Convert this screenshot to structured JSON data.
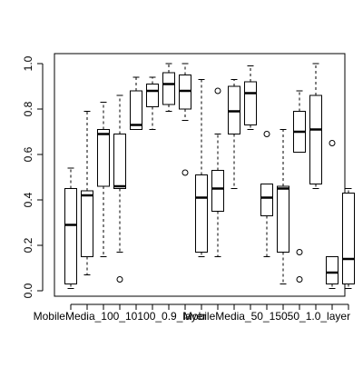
{
  "chart_data": {
    "type": "boxplot",
    "title": "",
    "xlabel": "",
    "ylabel": "",
    "ylim": [
      0.0,
      1.0
    ],
    "y_ticks": [
      0.0,
      0.2,
      0.4,
      0.6,
      0.8,
      1.0
    ],
    "y_tick_labels": [
      "0.0",
      "0.2",
      "0.4",
      "0.6",
      "0.8",
      "1.0"
    ],
    "x_tick_labels": [
      "MobileMedia_100_10100_0.9_layer",
      "MobileMedia_50_15050_1.0_layer"
    ],
    "x_tick_label_positions": [
      3,
      12
    ],
    "boxes": [
      {
        "whisker_low": 0.01,
        "q1": 0.03,
        "median": 0.29,
        "q3": 0.45,
        "whisker_high": 0.54,
        "outliers": []
      },
      {
        "whisker_low": 0.07,
        "q1": 0.15,
        "median": 0.42,
        "q3": 0.44,
        "whisker_high": 0.79,
        "outliers": []
      },
      {
        "whisker_low": 0.15,
        "q1": 0.46,
        "median": 0.69,
        "q3": 0.71,
        "whisker_high": 0.83,
        "outliers": []
      },
      {
        "whisker_low": 0.17,
        "q1": 0.45,
        "median": 0.46,
        "q3": 0.69,
        "whisker_high": 0.86,
        "outliers": [
          0.05
        ]
      },
      {
        "whisker_low": 0.71,
        "q1": 0.71,
        "median": 0.73,
        "q3": 0.88,
        "whisker_high": 0.94,
        "outliers": []
      },
      {
        "whisker_low": 0.71,
        "q1": 0.81,
        "median": 0.88,
        "q3": 0.91,
        "whisker_high": 0.94,
        "outliers": []
      },
      {
        "whisker_low": 0.79,
        "q1": 0.82,
        "median": 0.91,
        "q3": 0.96,
        "whisker_high": 1.0,
        "outliers": []
      },
      {
        "whisker_low": 0.75,
        "q1": 0.8,
        "median": 0.88,
        "q3": 0.95,
        "whisker_high": 1.0,
        "outliers": [
          0.52
        ]
      },
      {
        "whisker_low": 0.15,
        "q1": 0.17,
        "median": 0.41,
        "q3": 0.51,
        "whisker_high": 0.93,
        "outliers": []
      },
      {
        "whisker_low": 0.15,
        "q1": 0.35,
        "median": 0.45,
        "q3": 0.53,
        "whisker_high": 0.69,
        "outliers": [
          0.88
        ]
      },
      {
        "whisker_low": 0.45,
        "q1": 0.69,
        "median": 0.79,
        "q3": 0.9,
        "whisker_high": 0.93,
        "outliers": []
      },
      {
        "whisker_low": 0.71,
        "q1": 0.73,
        "median": 0.87,
        "q3": 0.92,
        "whisker_high": 0.99,
        "outliers": []
      },
      {
        "whisker_low": 0.15,
        "q1": 0.33,
        "median": 0.41,
        "q3": 0.47,
        "whisker_high": 0.47,
        "outliers": [
          0.69
        ]
      },
      {
        "whisker_low": 0.03,
        "q1": 0.17,
        "median": 0.45,
        "q3": 0.46,
        "whisker_high": 0.71,
        "outliers": []
      },
      {
        "whisker_low": 0.61,
        "q1": 0.61,
        "median": 0.7,
        "q3": 0.79,
        "whisker_high": 0.88,
        "outliers": [
          0.17,
          0.05
        ]
      },
      {
        "whisker_low": 0.45,
        "q1": 0.47,
        "median": 0.71,
        "q3": 0.86,
        "whisker_high": 1.0,
        "outliers": []
      },
      {
        "whisker_low": 0.01,
        "q1": 0.03,
        "median": 0.08,
        "q3": 0.15,
        "whisker_high": 0.15,
        "outliers": [
          0.65
        ]
      },
      {
        "whisker_low": 0.01,
        "q1": 0.03,
        "median": 0.14,
        "q3": 0.43,
        "whisker_high": 0.45,
        "outliers": []
      }
    ]
  }
}
